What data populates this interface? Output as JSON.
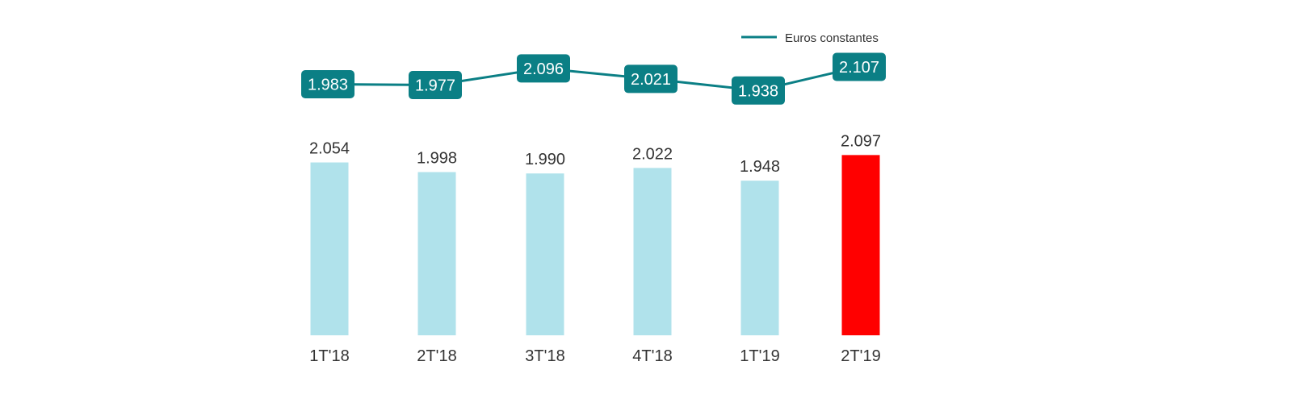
{
  "chart_data": {
    "type": "bar",
    "categories": [
      "1T'18",
      "2T'18",
      "3T'18",
      "4T'18",
      "1T'19",
      "2T'19"
    ],
    "series": [
      {
        "type": "bar",
        "values": [
          2054,
          1998,
          1990,
          2022,
          1948,
          2097
        ],
        "labels": [
          "2.054",
          "1.998",
          "1.990",
          "2.022",
          "1.948",
          "2.097"
        ],
        "colors": [
          "#b0e2eb",
          "#b0e2eb",
          "#b0e2eb",
          "#b0e2eb",
          "#b0e2eb",
          "#ff0000"
        ]
      },
      {
        "name": "Euros constantes",
        "type": "line",
        "values": [
          1983,
          1977,
          2096,
          2021,
          1938,
          2107
        ],
        "labels": [
          "1.983",
          "1.977",
          "2.096",
          "2.021",
          "1.938",
          "2.107"
        ],
        "color": "#0b7f85"
      }
    ],
    "legend": {
      "position": "top-right",
      "entries": [
        "Euros constantes"
      ]
    },
    "grid": false,
    "title": "",
    "xlabel": "",
    "ylabel": ""
  }
}
